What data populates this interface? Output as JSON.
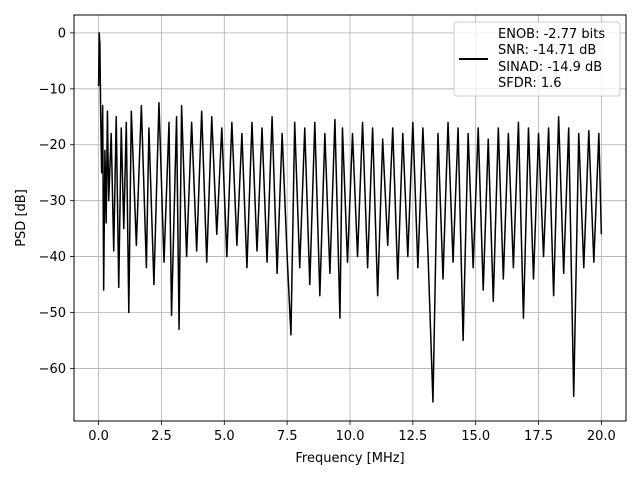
{
  "chart_data": {
    "type": "line",
    "title": "",
    "xlabel": "Frequency [MHz]",
    "ylabel": "PSD [dB]",
    "xlim": [
      -0.98,
      20.98
    ],
    "ylim": [
      -69.4,
      3.2
    ],
    "xticks": [
      0.0,
      2.5,
      5.0,
      7.5,
      10.0,
      12.5,
      15.0,
      17.5,
      20.0
    ],
    "xtick_labels": [
      "0.0",
      "2.5",
      "5.0",
      "7.5",
      "10.0",
      "12.5",
      "15.0",
      "17.5",
      "20.0"
    ],
    "yticks": [
      0,
      -10,
      -20,
      -30,
      -40,
      -50,
      -60
    ],
    "ytick_labels": [
      "0",
      "−10",
      "−20",
      "−30",
      "−40",
      "−50",
      "−60"
    ],
    "grid": true,
    "legend_position": "top-right",
    "line_color": "#000000",
    "series": [
      {
        "name": "ENOB: -2.77 bits\nSNR: -14.71 dB\nSINAD: -14.9 dB\nSFDR: 1.6",
        "legend_lines": [
          "ENOB: -2.77 bits",
          "SNR: -14.71 dB",
          "SINAD: -14.9 dB",
          "SFDR: 1.6"
        ],
        "x": [
          0.0,
          0.02,
          0.05,
          0.08,
          0.12,
          0.16,
          0.2,
          0.25,
          0.3,
          0.35,
          0.4,
          0.5,
          0.6,
          0.7,
          0.8,
          0.9,
          1.0,
          1.1,
          1.2,
          1.3,
          1.5,
          1.7,
          1.9,
          2.0,
          2.2,
          2.4,
          2.6,
          2.8,
          2.9,
          3.1,
          3.2,
          3.3,
          3.5,
          3.7,
          3.9,
          4.1,
          4.3,
          4.5,
          4.7,
          4.9,
          5.1,
          5.3,
          5.5,
          5.7,
          5.9,
          6.1,
          6.3,
          6.5,
          6.7,
          6.9,
          7.1,
          7.3,
          7.5,
          7.65,
          7.8,
          8.0,
          8.2,
          8.4,
          8.6,
          8.8,
          9.0,
          9.2,
          9.4,
          9.6,
          9.7,
          9.9,
          10.1,
          10.3,
          10.5,
          10.7,
          10.9,
          11.1,
          11.3,
          11.5,
          11.7,
          11.9,
          12.1,
          12.3,
          12.5,
          12.7,
          12.9,
          13.1,
          13.3,
          13.5,
          13.7,
          13.9,
          14.1,
          14.3,
          14.5,
          14.7,
          14.9,
          15.1,
          15.3,
          15.5,
          15.7,
          15.9,
          16.1,
          16.3,
          16.5,
          16.7,
          16.9,
          17.1,
          17.3,
          17.5,
          17.7,
          17.9,
          18.1,
          18.3,
          18.5,
          18.7,
          18.9,
          19.1,
          19.3,
          19.5,
          19.7,
          19.9,
          20.0
        ],
        "values": [
          -9.5,
          0.0,
          -2.0,
          -14.0,
          -25.0,
          -13.0,
          -46.0,
          -21.0,
          -34.0,
          -14.0,
          -30.0,
          -18.0,
          -39.0,
          -15.0,
          -45.5,
          -17.0,
          -35.0,
          -16.0,
          -50.0,
          -14.0,
          -38.0,
          -13.0,
          -42.0,
          -17.0,
          -45.0,
          -12.5,
          -41.0,
          -16.0,
          -50.5,
          -15.0,
          -53.0,
          -13.0,
          -40.0,
          -16.0,
          -39.0,
          -14.0,
          -41.0,
          -15.0,
          -36.0,
          -17.0,
          -40.0,
          -16.0,
          -38.0,
          -18.0,
          -42.0,
          -16.0,
          -39.0,
          -17.0,
          -41.0,
          -15.0,
          -43.0,
          -18.0,
          -40.0,
          -54.0,
          -16.0,
          -42.0,
          -17.0,
          -45.0,
          -16.0,
          -47.0,
          -18.0,
          -43.0,
          -15.5,
          -51.0,
          -17.0,
          -41.0,
          -18.0,
          -40.0,
          -16.0,
          -42.0,
          -17.0,
          -47.0,
          -19.0,
          -38.0,
          -17.0,
          -44.0,
          -18.0,
          -40.0,
          -16.0,
          -42.0,
          -17.0,
          -39.0,
          -66.0,
          -18.0,
          -44.0,
          -16.0,
          -41.0,
          -17.0,
          -55.0,
          -18.0,
          -42.0,
          -17.0,
          -46.0,
          -19.0,
          -48.0,
          -17.0,
          -44.0,
          -18.0,
          -42.0,
          -16.0,
          -51.0,
          -17.0,
          -44.0,
          -18.0,
          -40.0,
          -17.0,
          -47.0,
          -15.0,
          -43.0,
          -17.0,
          -65.0,
          -18.0,
          -42.0,
          -17.5,
          -41.0,
          -18.0,
          -36.0
        ]
      }
    ]
  }
}
